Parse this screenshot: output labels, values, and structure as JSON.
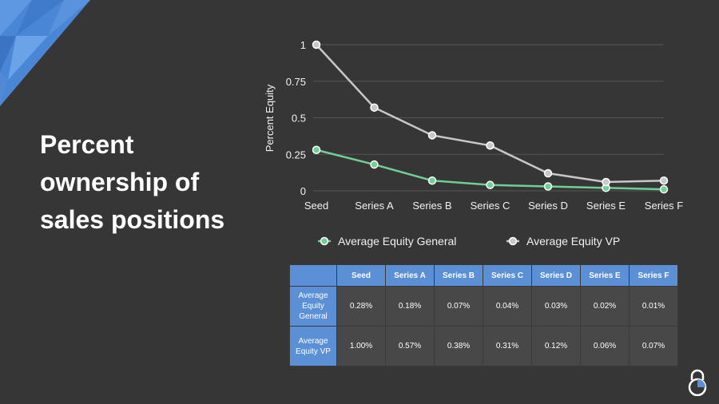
{
  "slide": {
    "title": "Percent ownership of sales positions",
    "colors": {
      "background": "#363636",
      "accent_blue": "#5b8fd6",
      "general": "#6fcf97",
      "vp": "#c8c8c8"
    }
  },
  "icons": {
    "corner": "triangle-pattern-icon",
    "logo": "lock-logo-icon"
  },
  "chart_data": {
    "type": "line",
    "categories": [
      "Seed",
      "Series A",
      "Series B",
      "Series C",
      "Series D",
      "Series E",
      "Series F"
    ],
    "series": [
      {
        "name": "Average Equity General",
        "values": [
          0.28,
          0.18,
          0.07,
          0.04,
          0.03,
          0.02,
          0.01
        ],
        "color": "#6fcf97"
      },
      {
        "name": "Average Equity VP",
        "values": [
          1.0,
          0.57,
          0.38,
          0.31,
          0.12,
          0.06,
          0.07
        ],
        "color": "#c8c8c8"
      }
    ],
    "ylabel": "Percent Equity",
    "xlabel": "",
    "ylim": [
      0,
      1
    ],
    "yticks": [
      "0",
      "0.25",
      "0.5",
      "0.75",
      "1"
    ],
    "grid": true,
    "legend": "bottom"
  },
  "table": {
    "headers": [
      "Seed",
      "Series A",
      "Series B",
      "Series C",
      "Series D",
      "Series E",
      "Series F"
    ],
    "rows": [
      {
        "label": "Average Equity General",
        "cells": [
          "0.28%",
          "0.18%",
          "0.07%",
          "0.04%",
          "0.03%",
          "0.02%",
          "0.01%"
        ]
      },
      {
        "label": "Average Equity VP",
        "cells": [
          "1.00%",
          "0.57%",
          "0.38%",
          "0.31%",
          "0.12%",
          "0.06%",
          "0.07%"
        ]
      }
    ]
  }
}
